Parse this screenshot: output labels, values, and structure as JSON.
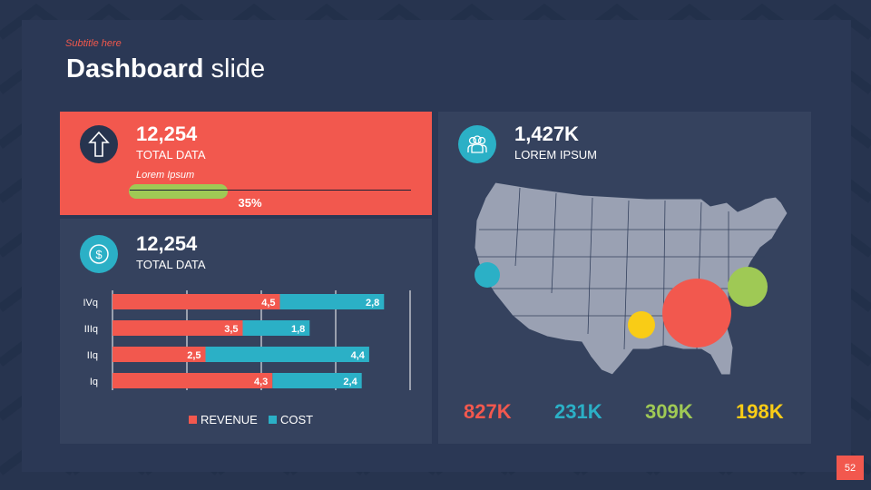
{
  "header": {
    "subtitle": "Subtitle here",
    "title_bold": "Dashboard",
    "title_rest": " slide"
  },
  "colors": {
    "red": "#f2584e",
    "cyan": "#2bb0c6",
    "green": "#9fc955",
    "yellow": "#f9cc16",
    "panel": "#35425e",
    "background": "#27344f"
  },
  "card1": {
    "icon": "arrow-up-icon",
    "value": "12,254",
    "label": "TOTAL DATA",
    "progress_label": "Lorem Ipsum",
    "progress_percent": 35,
    "progress_text": "35%"
  },
  "card2": {
    "icon": "dollar-icon",
    "value": "12,254",
    "label": "TOTAL DATA"
  },
  "card3": {
    "icon": "users-icon",
    "value": "1,427K",
    "label": "LOREM IPSUM",
    "stats": [
      {
        "value": "827K",
        "color": "#f2584e"
      },
      {
        "value": "231K",
        "color": "#2bb0c6"
      },
      {
        "value": "309K",
        "color": "#9fc955"
      },
      {
        "value": "198K",
        "color": "#f9cc16"
      }
    ]
  },
  "chart_data": {
    "type": "bar",
    "orientation": "horizontal",
    "stacked": true,
    "categories": [
      "IVq",
      "IIIq",
      "IIq",
      "Iq"
    ],
    "series": [
      {
        "name": "REVENUE",
        "values": [
          4.5,
          3.5,
          2.5,
          4.3
        ],
        "labels": [
          "4,5",
          "3,5",
          "2,5",
          "4,3"
        ],
        "color": "#f2584e"
      },
      {
        "name": "COST",
        "values": [
          2.8,
          1.8,
          4.4,
          2.4
        ],
        "labels": [
          "2,8",
          "1,8",
          "4,4",
          "2,4"
        ],
        "color": "#2bb0c6"
      }
    ],
    "xlim": [
      0,
      8
    ],
    "grid": true,
    "legend": "bottom"
  },
  "page_number": "52"
}
